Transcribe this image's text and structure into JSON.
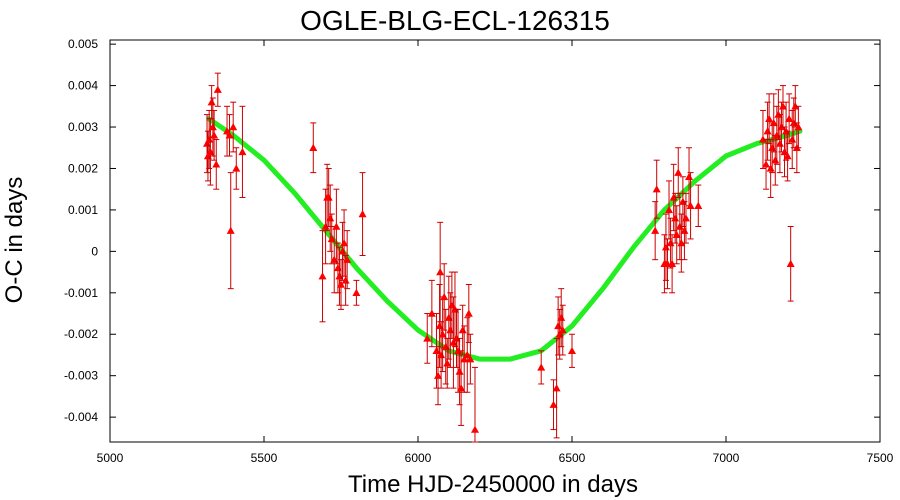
{
  "chart_data": {
    "type": "scatter",
    "title": "OGLE-BLG-ECL-126315",
    "xlabel": "Time HJD-2450000 in days",
    "ylabel": "O-C in days",
    "xlim": [
      5000,
      7500
    ],
    "ylim": [
      -0.0046,
      0.0051
    ],
    "x_ticks": [
      5000,
      5500,
      6000,
      6500,
      7000,
      7500
    ],
    "x_tick_labels": [
      "5000",
      "5500",
      "6000",
      "6500",
      "7000",
      "7500"
    ],
    "y_ticks": [
      0.005,
      0.004,
      0.003,
      0.002,
      0.001,
      0,
      -0.001,
      -0.002,
      -0.003,
      -0.004
    ],
    "y_tick_labels": [
      "0.005",
      "0.004",
      "0.003",
      "0.002",
      "0.001",
      "0",
      "-0.001",
      "-0.002",
      "-0.003",
      "-0.004"
    ],
    "grid": false,
    "colors": {
      "points": "#ff0000",
      "errorbars": "#cc0000",
      "fit": "#22ee22"
    },
    "series": [
      {
        "type": "scatter_errorbars",
        "points": [
          {
            "x": 5315,
            "y": 0.0026,
            "err": 0.0007
          },
          {
            "x": 5318,
            "y": 0.0023,
            "err": 0.0006
          },
          {
            "x": 5322,
            "y": 0.0027,
            "err": 0.0007
          },
          {
            "x": 5326,
            "y": 0.0024,
            "err": 0.0008
          },
          {
            "x": 5330,
            "y": 0.0036,
            "err": 0.0004
          },
          {
            "x": 5334,
            "y": 0.003,
            "err": 0.0007
          },
          {
            "x": 5338,
            "y": 0.0028,
            "err": 0.0006
          },
          {
            "x": 5345,
            "y": 0.0021,
            "err": 0.0006
          },
          {
            "x": 5350,
            "y": 0.0039,
            "err": 0.0004
          },
          {
            "x": 5380,
            "y": 0.0029,
            "err": 0.0006
          },
          {
            "x": 5388,
            "y": 0.0028,
            "err": 0.0005
          },
          {
            "x": 5392,
            "y": 0.0005,
            "err": 0.0014
          },
          {
            "x": 5400,
            "y": 0.003,
            "err": 0.0006
          },
          {
            "x": 5410,
            "y": 0.002,
            "err": 0.0005
          },
          {
            "x": 5430,
            "y": 0.0024,
            "err": 0.0011
          },
          {
            "x": 5660,
            "y": 0.0025,
            "err": 0.0006
          },
          {
            "x": 5690,
            "y": -0.0006,
            "err": 0.0011
          },
          {
            "x": 5700,
            "y": 0.0006,
            "err": 0.0009
          },
          {
            "x": 5705,
            "y": 0.0013,
            "err": 0.0008
          },
          {
            "x": 5710,
            "y": 0.0013,
            "err": 0.0007
          },
          {
            "x": 5715,
            "y": 0.0008,
            "err": 0.0008
          },
          {
            "x": 5720,
            "y": 0.0003,
            "err": 0.0006
          },
          {
            "x": 5728,
            "y": -0.0002,
            "err": 0.0008
          },
          {
            "x": 5735,
            "y": 0.0006,
            "err": 0.0009
          },
          {
            "x": 5740,
            "y": -0.0004,
            "err": 0.0006
          },
          {
            "x": 5745,
            "y": -0.0006,
            "err": 0.0007
          },
          {
            "x": 5750,
            "y": -0.0008,
            "err": 0.0006
          },
          {
            "x": 5755,
            "y": 0.0,
            "err": 0.0007
          },
          {
            "x": 5760,
            "y": 0.0002,
            "err": 0.0008
          },
          {
            "x": 5765,
            "y": -0.0007,
            "err": 0.0006
          },
          {
            "x": 5770,
            "y": -0.0002,
            "err": 0.0007
          },
          {
            "x": 5800,
            "y": -0.001,
            "err": 0.0003
          },
          {
            "x": 5820,
            "y": 0.0009,
            "err": 0.001
          },
          {
            "x": 6030,
            "y": -0.0021,
            "err": 0.0006
          },
          {
            "x": 6045,
            "y": -0.0015,
            "err": 0.0008
          },
          {
            "x": 6060,
            "y": -0.0024,
            "err": 0.0009
          },
          {
            "x": 6065,
            "y": -0.003,
            "err": 0.0007
          },
          {
            "x": 6070,
            "y": -0.0018,
            "err": 0.001
          },
          {
            "x": 6072,
            "y": -0.0005,
            "err": 0.0012
          },
          {
            "x": 6075,
            "y": -0.0025,
            "err": 0.0008
          },
          {
            "x": 6080,
            "y": -0.002,
            "err": 0.0009
          },
          {
            "x": 6085,
            "y": -0.0011,
            "err": 0.0008
          },
          {
            "x": 6090,
            "y": -0.0023,
            "err": 0.0009
          },
          {
            "x": 6095,
            "y": -0.0027,
            "err": 0.0006
          },
          {
            "x": 6100,
            "y": -0.0016,
            "err": 0.001
          },
          {
            "x": 6105,
            "y": -0.0019,
            "err": 0.0009
          },
          {
            "x": 6110,
            "y": -0.0013,
            "err": 0.0008
          },
          {
            "x": 6115,
            "y": -0.0022,
            "err": 0.0011
          },
          {
            "x": 6120,
            "y": -0.0014,
            "err": 0.0009
          },
          {
            "x": 6125,
            "y": -0.0021,
            "err": 0.0007
          },
          {
            "x": 6130,
            "y": -0.0024,
            "err": 0.001
          },
          {
            "x": 6135,
            "y": -0.0029,
            "err": 0.0008
          },
          {
            "x": 6140,
            "y": -0.0033,
            "err": 0.0009
          },
          {
            "x": 6145,
            "y": -0.0019,
            "err": 0.0006
          },
          {
            "x": 6150,
            "y": -0.0026,
            "err": 0.0008
          },
          {
            "x": 6160,
            "y": -0.0025,
            "err": 0.0009
          },
          {
            "x": 6165,
            "y": -0.0015,
            "err": 0.0007
          },
          {
            "x": 6170,
            "y": -0.0026,
            "err": 0.0006
          },
          {
            "x": 6185,
            "y": -0.0043,
            "err": 0.0015
          },
          {
            "x": 6400,
            "y": -0.0028,
            "err": 0.0004
          },
          {
            "x": 6440,
            "y": -0.0037,
            "err": 0.0006
          },
          {
            "x": 6450,
            "y": -0.0033,
            "err": 0.0012
          },
          {
            "x": 6455,
            "y": -0.0018,
            "err": 0.0007
          },
          {
            "x": 6460,
            "y": -0.002,
            "err": 0.0006
          },
          {
            "x": 6465,
            "y": -0.0016,
            "err": 0.0007
          },
          {
            "x": 6470,
            "y": -0.0019,
            "err": 0.0006
          },
          {
            "x": 6500,
            "y": -0.0024,
            "err": 0.0004
          },
          {
            "x": 6770,
            "y": 0.0005,
            "err": 0.0007
          },
          {
            "x": 6775,
            "y": 0.0015,
            "err": 0.0007
          },
          {
            "x": 6800,
            "y": -0.0003,
            "err": 0.0007
          },
          {
            "x": 6805,
            "y": 0.0001,
            "err": 0.0008
          },
          {
            "x": 6810,
            "y": -0.0003,
            "err": 0.0006
          },
          {
            "x": 6815,
            "y": 0.001,
            "err": 0.0007
          },
          {
            "x": 6820,
            "y": 0.0002,
            "err": 0.0006
          },
          {
            "x": 6825,
            "y": -0.0003,
            "err": 0.0007
          },
          {
            "x": 6830,
            "y": 0.0013,
            "err": 0.0008
          },
          {
            "x": 6835,
            "y": 0.0008,
            "err": 0.0006
          },
          {
            "x": 6840,
            "y": 0.0004,
            "err": 0.0007
          },
          {
            "x": 6845,
            "y": 0.0019,
            "err": 0.0006
          },
          {
            "x": 6850,
            "y": 0.0006,
            "err": 0.0008
          },
          {
            "x": 6855,
            "y": 0.0002,
            "err": 0.0007
          },
          {
            "x": 6860,
            "y": 0.0012,
            "err": 0.0006
          },
          {
            "x": 6865,
            "y": 0.0005,
            "err": 0.0007
          },
          {
            "x": 6870,
            "y": 0.0008,
            "err": 0.0006
          },
          {
            "x": 6880,
            "y": 0.0018,
            "err": 0.0007
          },
          {
            "x": 6885,
            "y": 0.0011,
            "err": 0.0008
          },
          {
            "x": 6910,
            "y": 0.0011,
            "err": 0.0005
          },
          {
            "x": 7120,
            "y": 0.0027,
            "err": 0.0007
          },
          {
            "x": 7130,
            "y": 0.0021,
            "err": 0.0006
          },
          {
            "x": 7135,
            "y": 0.0029,
            "err": 0.0007
          },
          {
            "x": 7140,
            "y": 0.0032,
            "err": 0.0006
          },
          {
            "x": 7145,
            "y": 0.002,
            "err": 0.0007
          },
          {
            "x": 7150,
            "y": 0.0025,
            "err": 0.0006
          },
          {
            "x": 7155,
            "y": 0.0031,
            "err": 0.0007
          },
          {
            "x": 7160,
            "y": 0.0022,
            "err": 0.0006
          },
          {
            "x": 7165,
            "y": 0.0028,
            "err": 0.0007
          },
          {
            "x": 7170,
            "y": 0.0033,
            "err": 0.0006
          },
          {
            "x": 7175,
            "y": 0.0026,
            "err": 0.0007
          },
          {
            "x": 7180,
            "y": 0.003,
            "err": 0.0006
          },
          {
            "x": 7185,
            "y": 0.0035,
            "err": 0.0005
          },
          {
            "x": 7190,
            "y": 0.0024,
            "err": 0.0006
          },
          {
            "x": 7195,
            "y": 0.0029,
            "err": 0.0007
          },
          {
            "x": 7200,
            "y": 0.0023,
            "err": 0.0006
          },
          {
            "x": 7205,
            "y": 0.0032,
            "err": 0.0006
          },
          {
            "x": 7210,
            "y": -0.0003,
            "err": 0.0009
          },
          {
            "x": 7215,
            "y": 0.0027,
            "err": 0.0007
          },
          {
            "x": 7220,
            "y": 0.0031,
            "err": 0.0006
          },
          {
            "x": 7225,
            "y": 0.0035,
            "err": 0.0005
          },
          {
            "x": 7230,
            "y": 0.0025,
            "err": 0.0006
          },
          {
            "x": 7235,
            "y": 0.003,
            "err": 0.0005
          }
        ]
      },
      {
        "type": "fit_curve",
        "x": [
          5320,
          5400,
          5500,
          5600,
          5700,
          5800,
          5900,
          6000,
          6100,
          6200,
          6300,
          6400,
          6500,
          6600,
          6700,
          6800,
          6900,
          7000,
          7100,
          7200,
          7240
        ],
        "y": [
          0.0032,
          0.0028,
          0.0022,
          0.0014,
          0.0005,
          -0.0004,
          -0.0012,
          -0.0019,
          -0.0024,
          -0.0026,
          -0.0026,
          -0.0024,
          -0.0018,
          -0.0009,
          0.0001,
          0.001,
          0.0017,
          0.0023,
          0.0026,
          0.0028,
          0.0029
        ]
      }
    ]
  }
}
